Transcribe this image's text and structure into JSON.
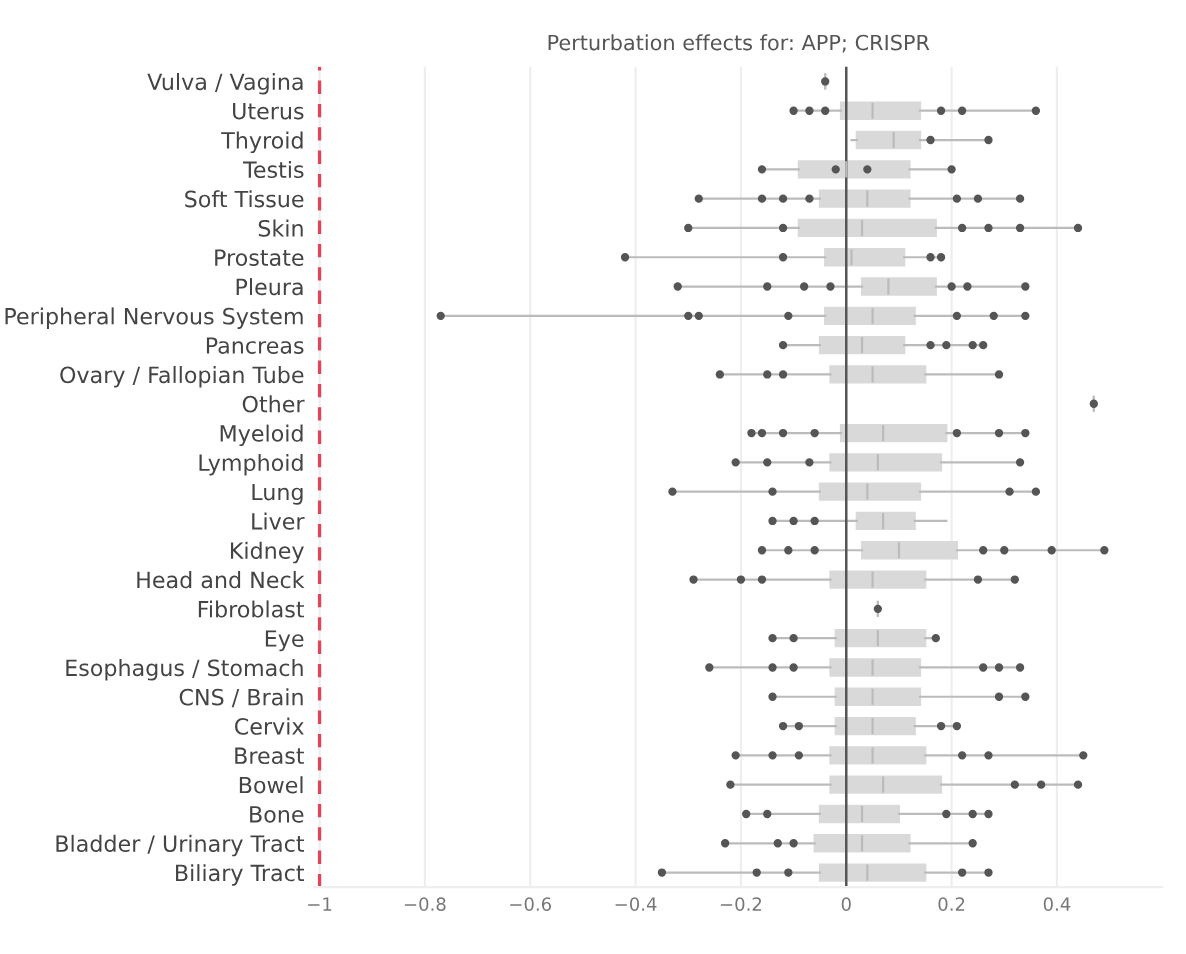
{
  "chart_data": {
    "type": "box",
    "orientation": "horizontal",
    "title": "Perturbation effects for: APP; CRISPR",
    "categories": [
      "Vulva / Vagina",
      "Uterus",
      "Thyroid",
      "Testis",
      "Soft Tissue",
      "Skin",
      "Prostate",
      "Pleura",
      "Peripheral Nervous System",
      "Pancreas",
      "Ovary / Fallopian Tube",
      "Other",
      "Myeloid",
      "Lymphoid",
      "Lung",
      "Liver",
      "Kidney",
      "Head and Neck",
      "Fibroblast",
      "Eye",
      "Esophagus / Stomach",
      "CNS / Brain",
      "Cervix",
      "Breast",
      "Bowel",
      "Bone",
      "Bladder / Urinary Tract",
      "Biliary Tract"
    ],
    "series": [
      {
        "type": "box",
        "color": "#d9d9d9",
        "boxes": [
          {
            "low": -0.04,
            "q1": -0.04,
            "median": -0.04,
            "q3": -0.04,
            "high": -0.04
          },
          {
            "low": -0.1,
            "q1": -0.01,
            "median": 0.05,
            "q3": 0.14,
            "high": 0.36
          },
          {
            "low": 0.01,
            "q1": 0.02,
            "median": 0.09,
            "q3": 0.14,
            "high": 0.27
          },
          {
            "low": -0.16,
            "q1": -0.09,
            "median": 0.0,
            "q3": 0.12,
            "high": 0.2
          },
          {
            "low": -0.28,
            "q1": -0.05,
            "median": 0.04,
            "q3": 0.12,
            "high": 0.33
          },
          {
            "low": -0.3,
            "q1": -0.09,
            "median": 0.03,
            "q3": 0.17,
            "high": 0.44
          },
          {
            "low": -0.42,
            "q1": -0.04,
            "median": 0.01,
            "q3": 0.11,
            "high": 0.18
          },
          {
            "low": -0.32,
            "q1": 0.03,
            "median": 0.08,
            "q3": 0.17,
            "high": 0.34
          },
          {
            "low": -0.77,
            "q1": -0.04,
            "median": 0.05,
            "q3": 0.13,
            "high": 0.34
          },
          {
            "low": -0.12,
            "q1": -0.05,
            "median": 0.03,
            "q3": 0.11,
            "high": 0.26
          },
          {
            "low": -0.24,
            "q1": -0.03,
            "median": 0.05,
            "q3": 0.15,
            "high": 0.29
          },
          {
            "low": 0.47,
            "q1": 0.47,
            "median": 0.47,
            "q3": 0.47,
            "high": 0.47
          },
          {
            "low": -0.18,
            "q1": -0.01,
            "median": 0.07,
            "q3": 0.19,
            "high": 0.34
          },
          {
            "low": -0.21,
            "q1": -0.03,
            "median": 0.06,
            "q3": 0.18,
            "high": 0.33
          },
          {
            "low": -0.33,
            "q1": -0.05,
            "median": 0.04,
            "q3": 0.14,
            "high": 0.36
          },
          {
            "low": -0.14,
            "q1": 0.02,
            "median": 0.07,
            "q3": 0.13,
            "high": 0.19
          },
          {
            "low": -0.16,
            "q1": 0.03,
            "median": 0.1,
            "q3": 0.21,
            "high": 0.49
          },
          {
            "low": -0.29,
            "q1": -0.03,
            "median": 0.05,
            "q3": 0.15,
            "high": 0.32
          },
          {
            "low": 0.06,
            "q1": 0.06,
            "median": 0.06,
            "q3": 0.06,
            "high": 0.06
          },
          {
            "low": -0.14,
            "q1": -0.02,
            "median": 0.06,
            "q3": 0.15,
            "high": 0.17
          },
          {
            "low": -0.26,
            "q1": -0.03,
            "median": 0.05,
            "q3": 0.14,
            "high": 0.33
          },
          {
            "low": -0.14,
            "q1": -0.02,
            "median": 0.05,
            "q3": 0.14,
            "high": 0.34
          },
          {
            "low": -0.12,
            "q1": -0.02,
            "median": 0.05,
            "q3": 0.13,
            "high": 0.21
          },
          {
            "low": -0.21,
            "q1": -0.03,
            "median": 0.05,
            "q3": 0.15,
            "high": 0.45
          },
          {
            "low": -0.22,
            "q1": -0.03,
            "median": 0.07,
            "q3": 0.18,
            "high": 0.44
          },
          {
            "low": -0.19,
            "q1": -0.05,
            "median": 0.03,
            "q3": 0.1,
            "high": 0.27
          },
          {
            "low": -0.23,
            "q1": -0.06,
            "median": 0.03,
            "q3": 0.12,
            "high": 0.24
          },
          {
            "low": -0.35,
            "q1": -0.05,
            "median": 0.04,
            "q3": 0.15,
            "high": 0.27
          }
        ]
      },
      {
        "type": "scatter",
        "color": "#555555",
        "x": [
          "Vulva / Vagina",
          "Uterus",
          "Uterus",
          "Uterus",
          "Uterus",
          "Uterus",
          "Uterus",
          "Thyroid",
          "Thyroid",
          "Testis",
          "Testis",
          "Testis",
          "Testis",
          "Soft Tissue",
          "Soft Tissue",
          "Soft Tissue",
          "Soft Tissue",
          "Soft Tissue",
          "Soft Tissue",
          "Soft Tissue",
          "Skin",
          "Skin",
          "Skin",
          "Skin",
          "Skin",
          "Skin",
          "Prostate",
          "Prostate",
          "Prostate",
          "Prostate",
          "Pleura",
          "Pleura",
          "Pleura",
          "Pleura",
          "Pleura",
          "Pleura",
          "Pleura",
          "Peripheral Nervous System",
          "Peripheral Nervous System",
          "Peripheral Nervous System",
          "Peripheral Nervous System",
          "Peripheral Nervous System",
          "Peripheral Nervous System",
          "Peripheral Nervous System",
          "Pancreas",
          "Pancreas",
          "Pancreas",
          "Pancreas",
          "Pancreas",
          "Ovary / Fallopian Tube",
          "Ovary / Fallopian Tube",
          "Ovary / Fallopian Tube",
          "Ovary / Fallopian Tube",
          "Other",
          "Myeloid",
          "Myeloid",
          "Myeloid",
          "Myeloid",
          "Myeloid",
          "Myeloid",
          "Myeloid",
          "Lymphoid",
          "Lymphoid",
          "Lymphoid",
          "Lymphoid",
          "Lung",
          "Lung",
          "Lung",
          "Lung",
          "Liver",
          "Liver",
          "Liver",
          "Kidney",
          "Kidney",
          "Kidney",
          "Kidney",
          "Kidney",
          "Kidney",
          "Kidney",
          "Head and Neck",
          "Head and Neck",
          "Head and Neck",
          "Head and Neck",
          "Head and Neck",
          "Fibroblast",
          "Eye",
          "Eye",
          "Eye",
          "Esophagus / Stomach",
          "Esophagus / Stomach",
          "Esophagus / Stomach",
          "Esophagus / Stomach",
          "Esophagus / Stomach",
          "Esophagus / Stomach",
          "CNS / Brain",
          "CNS / Brain",
          "CNS / Brain",
          "Cervix",
          "Cervix",
          "Cervix",
          "Cervix",
          "Breast",
          "Breast",
          "Breast",
          "Breast",
          "Breast",
          "Breast",
          "Bowel",
          "Bowel",
          "Bowel",
          "Bowel",
          "Bone",
          "Bone",
          "Bone",
          "Bone",
          "Bone",
          "Bladder / Urinary Tract",
          "Bladder / Urinary Tract",
          "Bladder / Urinary Tract",
          "Bladder / Urinary Tract",
          "Biliary Tract",
          "Biliary Tract",
          "Biliary Tract",
          "Biliary Tract",
          "Biliary Tract"
        ],
        "values": [
          -0.04,
          -0.1,
          -0.07,
          -0.04,
          0.18,
          0.22,
          0.36,
          0.16,
          0.27,
          -0.16,
          -0.02,
          0.04,
          0.2,
          -0.28,
          -0.16,
          -0.12,
          -0.07,
          0.21,
          0.25,
          0.33,
          -0.3,
          -0.12,
          0.22,
          0.27,
          0.33,
          0.44,
          -0.42,
          -0.12,
          0.16,
          0.18,
          -0.32,
          -0.15,
          -0.08,
          -0.03,
          0.2,
          0.23,
          0.34,
          -0.77,
          -0.3,
          -0.28,
          -0.11,
          0.21,
          0.28,
          0.34,
          -0.12,
          0.16,
          0.19,
          0.24,
          0.26,
          -0.24,
          -0.15,
          -0.12,
          0.29,
          0.47,
          -0.18,
          -0.16,
          -0.12,
          -0.06,
          0.21,
          0.29,
          0.34,
          -0.21,
          -0.15,
          -0.07,
          0.33,
          -0.33,
          -0.14,
          0.31,
          0.36,
          -0.14,
          -0.1,
          -0.06,
          -0.16,
          -0.11,
          -0.06,
          0.26,
          0.3,
          0.39,
          0.49,
          -0.29,
          -0.2,
          -0.16,
          0.25,
          0.32,
          0.06,
          -0.14,
          -0.1,
          0.17,
          -0.26,
          -0.14,
          -0.1,
          0.26,
          0.29,
          0.33,
          -0.14,
          0.29,
          0.34,
          -0.12,
          -0.09,
          0.18,
          0.21,
          -0.21,
          -0.14,
          -0.09,
          0.22,
          0.27,
          0.45,
          -0.22,
          0.32,
          0.37,
          0.44,
          -0.19,
          -0.15,
          0.19,
          0.24,
          0.27,
          -0.23,
          -0.13,
          -0.1,
          0.24,
          -0.35,
          -0.17,
          -0.11,
          0.22,
          0.27
        ]
      }
    ],
    "xlim": [
      -1.01,
      0.6
    ],
    "xticks": [
      {
        "value": -1,
        "label": "−1"
      },
      {
        "value": -0.8,
        "label": "−0.8"
      },
      {
        "value": -0.6,
        "label": "−0.6"
      },
      {
        "value": -0.4,
        "label": "−0.4"
      },
      {
        "value": -0.2,
        "label": "−0.2"
      },
      0,
      0.2,
      0.4
    ],
    "ref_lines": [
      {
        "axis": "x",
        "value": -1,
        "color": "#e0455a",
        "line_style": "dashed"
      },
      {
        "axis": "x",
        "value": 0,
        "color": "#555555",
        "line_style": "solid"
      }
    ],
    "grid": "x",
    "marker": "circle"
  }
}
